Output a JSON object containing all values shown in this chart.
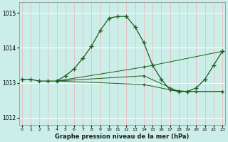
{
  "title": "Graphe pression niveau de la mer (hPa)",
  "background_color": "#cceee8",
  "grid_color_v": "#f0b0b0",
  "grid_color_h": "#ffffff",
  "line_color": "#1a5c1a",
  "marker": "+",
  "ylim": [
    1011.8,
    1015.3
  ],
  "yticks": [
    1012,
    1013,
    1014,
    1015
  ],
  "xlim": [
    -0.3,
    23.3
  ],
  "xticks": [
    0,
    1,
    2,
    3,
    4,
    5,
    6,
    7,
    8,
    9,
    10,
    11,
    12,
    13,
    14,
    15,
    16,
    17,
    18,
    19,
    20,
    21,
    22,
    23
  ],
  "curves": [
    {
      "x": [
        0,
        1,
        2,
        3,
        4,
        5,
        6,
        7,
        8,
        9,
        10,
        11,
        12,
        13,
        14,
        15,
        16,
        17,
        18,
        19,
        20,
        21,
        22,
        23
      ],
      "y": [
        1013.1,
        1013.1,
        1013.05,
        1013.05,
        1013.05,
        1013.2,
        1013.4,
        1013.7,
        1014.05,
        1014.5,
        1014.85,
        1014.9,
        1014.9,
        1014.6,
        1014.15,
        1013.5,
        1013.1,
        1012.8,
        1012.75,
        1012.75,
        1012.85,
        1013.1,
        1013.5,
        1013.9
      ]
    },
    {
      "x": [
        4,
        14,
        23
      ],
      "y": [
        1013.05,
        1013.45,
        1013.9
      ]
    },
    {
      "x": [
        4,
        14,
        18,
        19,
        23
      ],
      "y": [
        1013.05,
        1013.2,
        1012.75,
        1012.75,
        1012.75
      ]
    },
    {
      "x": [
        4,
        14,
        17,
        19,
        20,
        23
      ],
      "y": [
        1013.05,
        1012.95,
        1012.8,
        1012.75,
        1012.75,
        1012.75
      ]
    }
  ]
}
